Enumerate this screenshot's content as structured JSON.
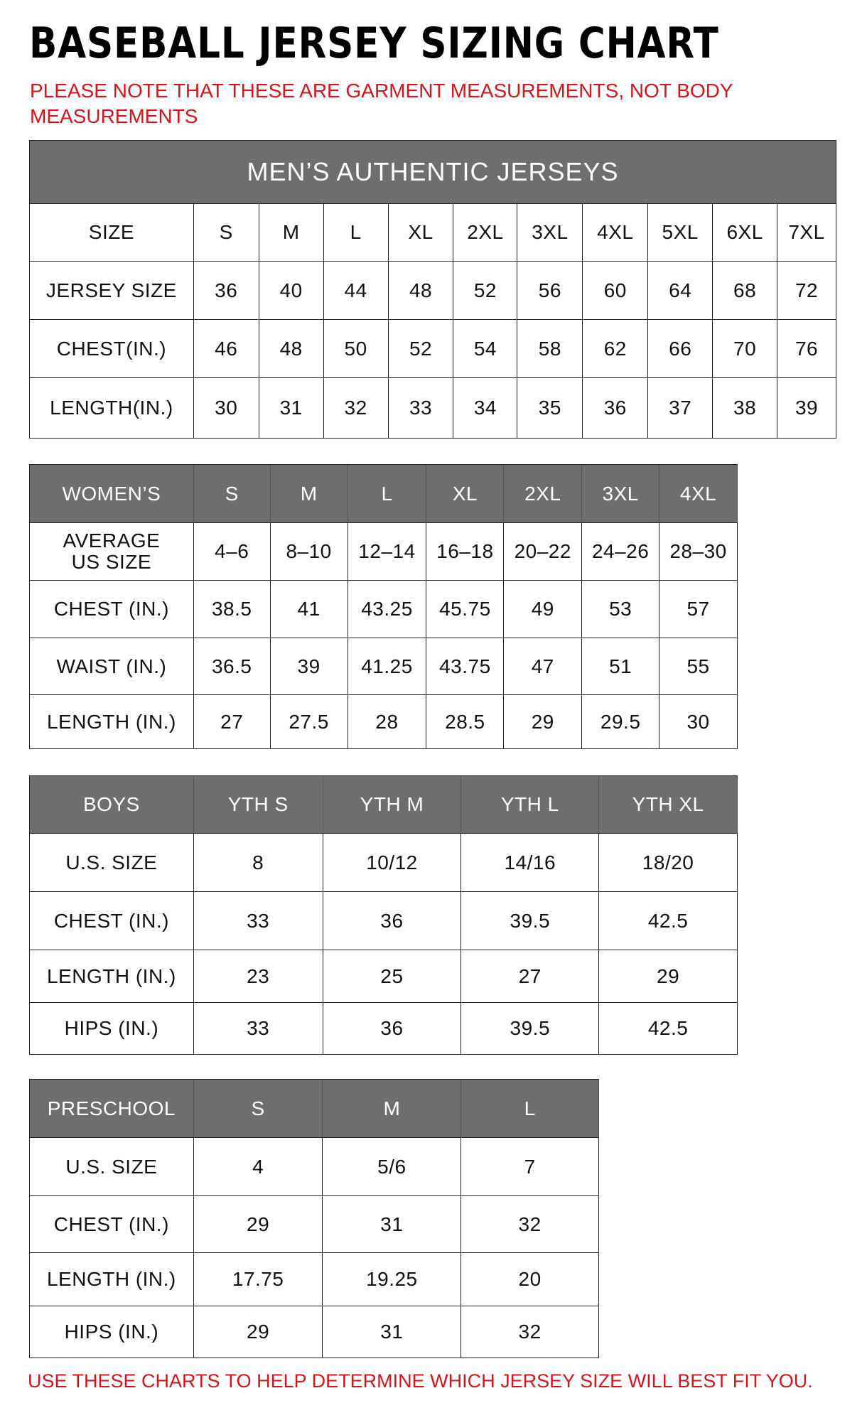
{
  "title": "BASEBALL JERSEY SIZING CHART",
  "note": "PLEASE NOTE THAT THESE ARE GARMENT MEASUREMENTS, NOT BODY MEASUREMENTS",
  "footer": "USE THESE CHARTS TO HELP DETERMINE WHICH JERSEY SIZE WILL BEST FIT YOU.",
  "colors": {
    "header_gray": "#6e6e6e",
    "note_red": "#d7141a"
  },
  "tables": [
    {
      "id": "mens",
      "banner": "MEN’S AUTHENTIC JERSEYS",
      "header_style": "plain",
      "rows": [
        [
          "SIZE",
          "S",
          "M",
          "L",
          "XL",
          "2XL",
          "3XL",
          "4XL",
          "5XL",
          "6XL",
          "7XL"
        ],
        [
          "JERSEY SIZE",
          "36",
          "40",
          "44",
          "48",
          "52",
          "56",
          "60",
          "64",
          "68",
          "72"
        ],
        [
          "CHEST(IN.)",
          "46",
          "48",
          "50",
          "52",
          "54",
          "58",
          "62",
          "66",
          "70",
          "76"
        ],
        [
          "LENGTH(IN.)",
          "30",
          "31",
          "32",
          "33",
          "34",
          "35",
          "36",
          "37",
          "38",
          "39"
        ]
      ]
    },
    {
      "id": "womens",
      "header_style": "gray",
      "rows": [
        [
          "WOMEN’S",
          "S",
          "M",
          "L",
          "XL",
          "2XL",
          "3XL",
          "4XL"
        ],
        [
          "AVERAGE\nUS SIZE",
          "4–6",
          "8–10",
          "12–14",
          "16–18",
          "20–22",
          "24–26",
          "28–30"
        ],
        [
          "CHEST (IN.)",
          "38.5",
          "41",
          "43.25",
          "45.75",
          "49",
          "53",
          "57"
        ],
        [
          "WAIST (IN.)",
          "36.5",
          "39",
          "41.25",
          "43.75",
          "47",
          "51",
          "55"
        ],
        [
          "LENGTH (IN.)",
          "27",
          "27.5",
          "28",
          "28.5",
          "29",
          "29.5",
          "30"
        ]
      ]
    },
    {
      "id": "boys",
      "header_style": "gray",
      "rows": [
        [
          "BOYS",
          "YTH S",
          "YTH M",
          "YTH L",
          "YTH XL"
        ],
        [
          "U.S. SIZE",
          "8",
          "10/12",
          "14/16",
          "18/20"
        ],
        [
          "CHEST (IN.)",
          "33",
          "36",
          "39.5",
          "42.5"
        ],
        [
          "LENGTH (IN.)",
          "23",
          "25",
          "27",
          "29"
        ],
        [
          "HIPS (IN.)",
          "33",
          "36",
          "39.5",
          "42.5"
        ]
      ]
    },
    {
      "id": "preschool",
      "header_style": "gray",
      "rows": [
        [
          "PRESCHOOL",
          "S",
          "M",
          "L"
        ],
        [
          "U.S. SIZE",
          "4",
          "5/6",
          "7"
        ],
        [
          "CHEST (IN.)",
          "29",
          "31",
          "32"
        ],
        [
          "LENGTH (IN.)",
          "17.75",
          "19.25",
          "20"
        ],
        [
          "HIPS (IN.)",
          "29",
          "31",
          "32"
        ]
      ]
    }
  ]
}
